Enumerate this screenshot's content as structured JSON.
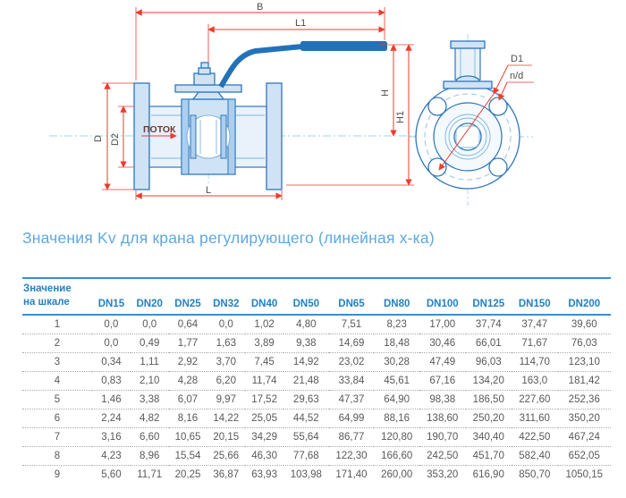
{
  "title": "Значения Kv для крана регулирующего (линейная х-ка)",
  "drawing": {
    "flow_label": "ПОТОК",
    "dim_labels": {
      "B": "B",
      "L1": "L1",
      "H": "H",
      "H1": "H1",
      "D": "D",
      "D2": "D2",
      "L": "L",
      "D1": "D1",
      "nd": "n/d"
    },
    "colors": {
      "dimension_red": "#ee3b2d",
      "outline_blue": "#2f77bc",
      "fill_light_blue": "#cfe3f5",
      "handle_blue": "#2272b8",
      "centerline_cyan": "#9bd6e6"
    }
  },
  "table": {
    "row_header": "Значение\nна шкале",
    "columns": [
      "DN15",
      "DN20",
      "DN25",
      "DN32",
      "DN40",
      "DN50",
      "DN65",
      "DN80",
      "DN100",
      "DN125",
      "DN150",
      "DN200"
    ],
    "rows": [
      {
        "scale": "1",
        "values": [
          "0,0",
          "0,0",
          "0,64",
          "0,0",
          "1,02",
          "4,80",
          "7,51",
          "8,23",
          "17,00",
          "37,74",
          "37,47",
          "39,60"
        ]
      },
      {
        "scale": "2",
        "values": [
          "0,0",
          "0,49",
          "1,77",
          "1,63",
          "3,89",
          "9,38",
          "14,69",
          "18,48",
          "30,46",
          "66,01",
          "71,67",
          "76,03"
        ]
      },
      {
        "scale": "3",
        "values": [
          "0,34",
          "1,11",
          "2,92",
          "3,70",
          "7,45",
          "14,92",
          "23,02",
          "30,28",
          "47,49",
          "96,03",
          "114,70",
          "123,10"
        ]
      },
      {
        "scale": "4",
        "values": [
          "0,83",
          "2,10",
          "4,28",
          "6,20",
          "11,74",
          "21,48",
          "33,84",
          "45,61",
          "67,16",
          "134,20",
          "163,0",
          "181,42"
        ]
      },
      {
        "scale": "5",
        "values": [
          "1,46",
          "3,38",
          "6,07",
          "9,97",
          "17,52",
          "29,63",
          "47,37",
          "64,90",
          "98,38",
          "186,50",
          "227,60",
          "252,36"
        ]
      },
      {
        "scale": "6",
        "values": [
          "2,24",
          "4,82",
          "8,16",
          "14,22",
          "25,05",
          "44,52",
          "64,99",
          "88,16",
          "138,60",
          "250,20",
          "311,60",
          "350,20"
        ]
      },
      {
        "scale": "7",
        "values": [
          "3,16",
          "6,60",
          "10,65",
          "20,15",
          "34,29",
          "55,64",
          "86,77",
          "120,80",
          "190,70",
          "340,40",
          "422,50",
          "467,24"
        ]
      },
      {
        "scale": "8",
        "values": [
          "4,23",
          "8,96",
          "15,54",
          "25,66",
          "46,30",
          "77,68",
          "122,30",
          "166,60",
          "242,50",
          "451,70",
          "582,40",
          "652,05"
        ]
      },
      {
        "scale": "9",
        "values": [
          "5,60",
          "11,71",
          "20,25",
          "36,87",
          "63,93",
          "103,98",
          "171,40",
          "260,00",
          "353,20",
          "616,90",
          "850,70",
          "1050,15"
        ]
      }
    ]
  },
  "colors": {
    "title_blue": "#5fa8dc",
    "header_blue": "#2380c4",
    "table_line_blue": "#3a8fcb",
    "body_text_gray": "#59595b"
  }
}
